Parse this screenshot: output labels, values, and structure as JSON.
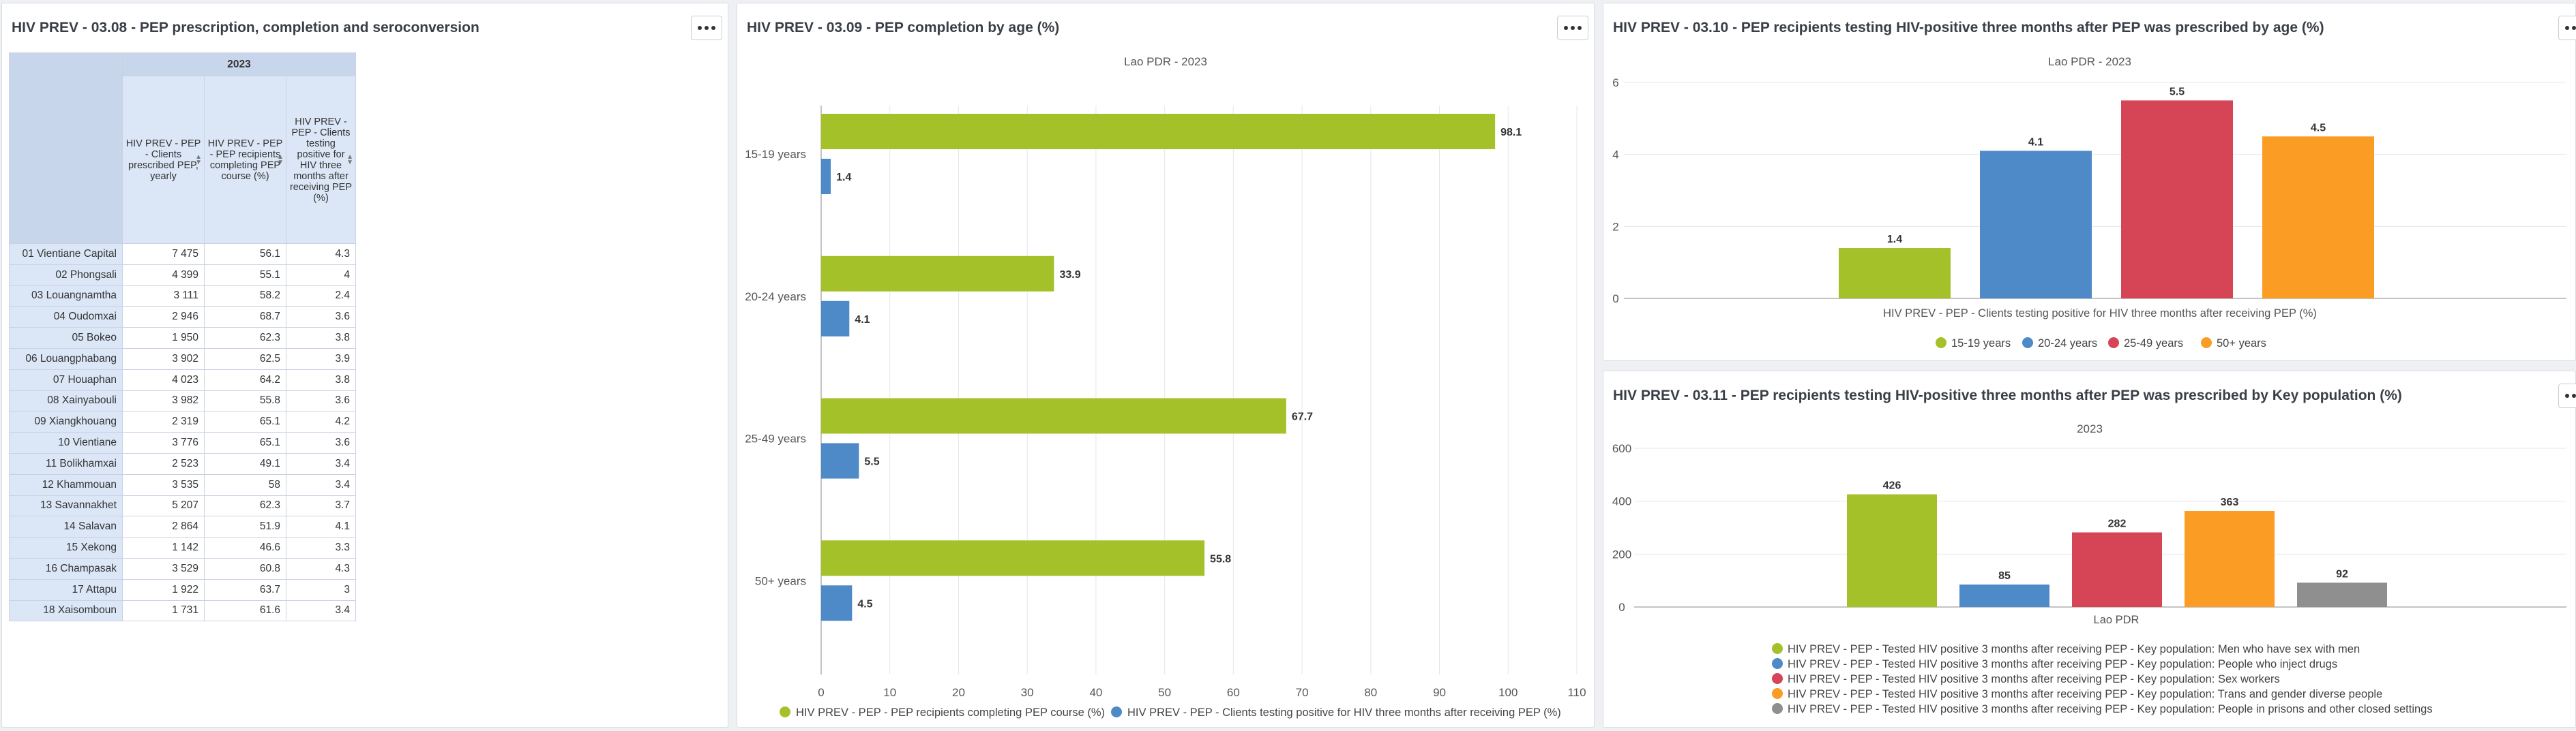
{
  "panels": {
    "p1": {
      "title": "HIV PREV - 03.08 - PEP prescription, completion and seroconversion",
      "table": {
        "year": "2023",
        "columns": [
          "HIV PREV - PEP - Clients prescribed PEP, yearly",
          "HIV PREV - PEP - PEP recipients completing PEP course (%)",
          "HIV PREV - PEP - Clients testing positive for HIV three months after receiving PEP (%)"
        ],
        "rows": [
          {
            "label": "01 Vientiane Capital",
            "c1": "7 475",
            "c2": "56.1",
            "c3": "4.3"
          },
          {
            "label": "02 Phongsali",
            "c1": "4 399",
            "c2": "55.1",
            "c3": "4"
          },
          {
            "label": "03 Louangnamtha",
            "c1": "3 111",
            "c2": "58.2",
            "c3": "2.4"
          },
          {
            "label": "04 Oudomxai",
            "c1": "2 946",
            "c2": "68.7",
            "c3": "3.6"
          },
          {
            "label": "05 Bokeo",
            "c1": "1 950",
            "c2": "62.3",
            "c3": "3.8"
          },
          {
            "label": "06 Louangphabang",
            "c1": "3 902",
            "c2": "62.5",
            "c3": "3.9"
          },
          {
            "label": "07 Houaphan",
            "c1": "4 023",
            "c2": "64.2",
            "c3": "3.8"
          },
          {
            "label": "08 Xainyabouli",
            "c1": "3 982",
            "c2": "55.8",
            "c3": "3.6"
          },
          {
            "label": "09 Xiangkhouang",
            "c1": "2 319",
            "c2": "65.1",
            "c3": "4.2"
          },
          {
            "label": "10 Vientiane",
            "c1": "3 776",
            "c2": "65.1",
            "c3": "3.6"
          },
          {
            "label": "11 Bolikhamxai",
            "c1": "2 523",
            "c2": "49.1",
            "c3": "3.4"
          },
          {
            "label": "12 Khammouan",
            "c1": "3 535",
            "c2": "58",
            "c3": "3.4"
          },
          {
            "label": "13 Savannakhet",
            "c1": "5 207",
            "c2": "62.3",
            "c3": "3.7"
          },
          {
            "label": "14 Salavan",
            "c1": "2 864",
            "c2": "51.9",
            "c3": "4.1"
          },
          {
            "label": "15 Xekong",
            "c1": "1 142",
            "c2": "46.6",
            "c3": "3.3"
          },
          {
            "label": "16 Champasak",
            "c1": "3 529",
            "c2": "60.8",
            "c3": "4.3"
          },
          {
            "label": "17 Attapu",
            "c1": "1 922",
            "c2": "63.7",
            "c3": "3"
          },
          {
            "label": "18 Xaisomboun",
            "c1": "1 731",
            "c2": "61.6",
            "c3": "3.4"
          }
        ]
      }
    },
    "p2": {
      "title": "HIV PREV - 03.09 - PEP completion by age (%)"
    },
    "p3": {
      "title": "HIV PREV - 03.10 - PEP recipients testing HIV-positive three months after PEP was prescribed by age (%)"
    },
    "p4": {
      "title": "HIV PREV - 03.11 - PEP recipients testing HIV-positive three months after PEP was prescribed by Key population (%)"
    }
  },
  "chart_data": [
    {
      "type": "bar",
      "orientation": "horizontal",
      "title": "Lao PDR - 2023",
      "categories": [
        "15-19 years",
        "20-24 years",
        "25-49 years",
        "50+ years"
      ],
      "series": [
        {
          "name": "HIV PREV - PEP - PEP recipients completing PEP course (%)",
          "color": "#a5c12a",
          "values": [
            98.1,
            33.9,
            67.7,
            55.8
          ]
        },
        {
          "name": "HIV PREV - PEP - Clients testing positive for HIV three months after receiving PEP (%)",
          "color": "#4e8ac8",
          "values": [
            1.4,
            4.1,
            5.5,
            4.5
          ]
        }
      ],
      "xlim": [
        0,
        110
      ],
      "ticks": [
        0,
        10,
        20,
        30,
        40,
        50,
        60,
        70,
        80,
        90,
        100,
        110
      ],
      "legend": "bottom"
    },
    {
      "type": "bar",
      "title": "Lao PDR - 2023",
      "xlabel": "HIV PREV - PEP - Clients testing positive for HIV three months after receiving PEP (%)",
      "series": [
        {
          "name": "15-19 years",
          "color": "#a5c12a",
          "value": 1.4
        },
        {
          "name": "20-24 years",
          "color": "#4e8ac8",
          "value": 4.1
        },
        {
          "name": "25-49 years",
          "color": "#d64555",
          "value": 5.5
        },
        {
          "name": "50+ years",
          "color": "#fb9d24",
          "value": 4.5
        }
      ],
      "ylim": [
        0,
        6
      ],
      "ticks": [
        0,
        2,
        4,
        6
      ],
      "legend": "bottom"
    },
    {
      "type": "bar",
      "title": "2023",
      "xlabel": "Lao PDR",
      "series": [
        {
          "name": "HIV PREV - PEP - Tested HIV positive 3 months after receiving PEP - Key population: Men who have sex with men",
          "color": "#a5c12a",
          "value": 426
        },
        {
          "name": "HIV PREV - PEP - Tested HIV positive 3 months after receiving PEP - Key population: People who inject drugs",
          "color": "#4e8ac8",
          "value": 85
        },
        {
          "name": "HIV PREV - PEP - Tested HIV positive 3 months after receiving PEP - Key population: Sex workers",
          "color": "#d64555",
          "value": 282
        },
        {
          "name": "HIV PREV - PEP - Tested HIV positive 3 months after receiving PEP - Key population: Trans and gender diverse people",
          "color": "#fb9d24",
          "value": 363
        },
        {
          "name": "HIV PREV - PEP - Tested HIV positive 3 months after receiving PEP - Key population: People in prisons and other closed settings",
          "color": "#8f8f8f",
          "value": 92
        }
      ],
      "ylim": [
        0,
        600
      ],
      "ticks": [
        0,
        200,
        400,
        600
      ],
      "legend": "bottom"
    }
  ]
}
